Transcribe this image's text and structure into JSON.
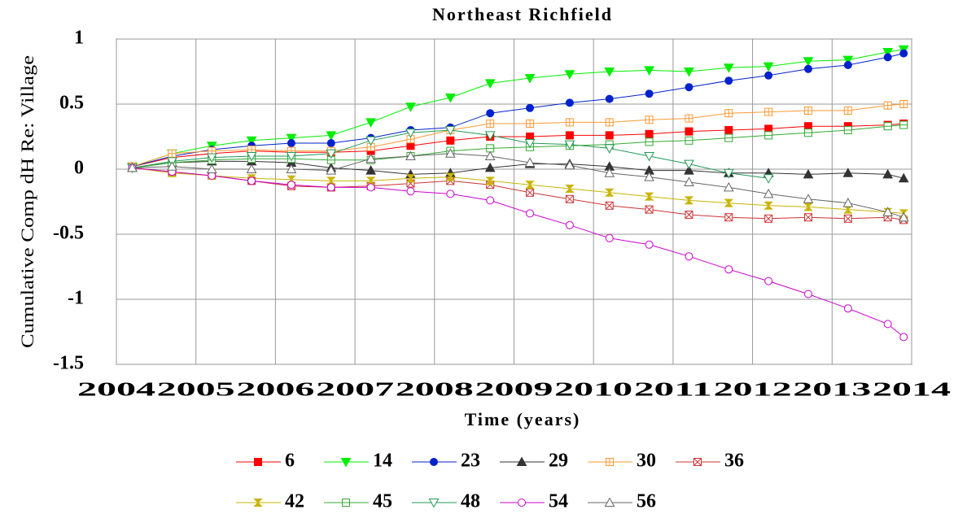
{
  "chart_data": {
    "type": "line",
    "title": "Northeast Richfield",
    "x_label": "Time (years)",
    "y_label": "Cumulative Comp dH Re: Village",
    "x": [
      2004.2,
      2004.7,
      2005.2,
      2005.7,
      2006.2,
      2006.7,
      2007.2,
      2007.7,
      2008.2,
      2008.7,
      2009.2,
      2009.7,
      2010.2,
      2010.7,
      2011.2,
      2011.7,
      2012.2,
      2012.7,
      2013.2,
      2013.7,
      2013.9
    ],
    "xlim": [
      2004,
      2014
    ],
    "xticks": [
      2004,
      2005,
      2006,
      2007,
      2008,
      2009,
      2010,
      2011,
      2012,
      2013,
      2014
    ],
    "ylim": [
      -1.5,
      1
    ],
    "yticks": [
      1,
      0.5,
      0,
      -0.5,
      -1,
      -1.5
    ],
    "grid": true,
    "legend": "bottom",
    "series": [
      {
        "name": "6",
        "color": "#ff0000",
        "marker": "square",
        "filled": true,
        "values": [
          0.02,
          0.09,
          0.12,
          0.14,
          0.13,
          0.13,
          0.14,
          0.18,
          0.22,
          0.25,
          0.25,
          0.26,
          0.26,
          0.27,
          0.29,
          0.3,
          0.31,
          0.33,
          0.33,
          0.34,
          0.35
        ]
      },
      {
        "name": "14",
        "color": "#00ee00",
        "marker": "triangle-down",
        "filled": true,
        "values": [
          0.02,
          0.12,
          0.18,
          0.22,
          0.24,
          0.26,
          0.36,
          0.48,
          0.55,
          0.66,
          0.7,
          0.73,
          0.75,
          0.76,
          0.75,
          0.78,
          0.79,
          0.83,
          0.84,
          0.9,
          0.92
        ]
      },
      {
        "name": "23",
        "color": "#0022cc",
        "marker": "circle",
        "filled": true,
        "values": [
          0.02,
          0.1,
          0.15,
          0.18,
          0.2,
          0.2,
          0.24,
          0.3,
          0.32,
          0.43,
          0.47,
          0.51,
          0.54,
          0.58,
          0.63,
          0.68,
          0.72,
          0.77,
          0.8,
          0.86,
          0.89
        ]
      },
      {
        "name": "29",
        "color": "#333333",
        "marker": "triangle-up",
        "filled": true,
        "values": [
          0.01,
          0.05,
          0.06,
          0.06,
          0.05,
          0.01,
          -0.01,
          -0.04,
          -0.03,
          0.01,
          0.04,
          0.04,
          0.02,
          -0.01,
          -0.01,
          -0.03,
          -0.03,
          -0.04,
          -0.03,
          -0.04,
          -0.07
        ]
      },
      {
        "name": "30",
        "color": "#ff9933",
        "marker": "square-plus",
        "filled": false,
        "values": [
          0.02,
          0.12,
          0.14,
          0.15,
          0.14,
          0.14,
          0.17,
          0.23,
          0.3,
          0.35,
          0.35,
          0.36,
          0.36,
          0.38,
          0.39,
          0.43,
          0.44,
          0.45,
          0.45,
          0.49,
          0.5
        ]
      },
      {
        "name": "36",
        "color": "#cc3333",
        "marker": "square-x",
        "filled": false,
        "values": [
          0.01,
          -0.02,
          -0.05,
          -0.09,
          -0.13,
          -0.14,
          -0.13,
          -0.11,
          -0.09,
          -0.12,
          -0.18,
          -0.23,
          -0.28,
          -0.31,
          -0.35,
          -0.37,
          -0.38,
          -0.37,
          -0.38,
          -0.37,
          -0.39
        ]
      },
      {
        "name": "42",
        "color": "#c8b400",
        "marker": "hourglass",
        "filled": true,
        "values": [
          0.01,
          -0.03,
          -0.05,
          -0.07,
          -0.08,
          -0.09,
          -0.09,
          -0.07,
          -0.06,
          -0.09,
          -0.12,
          -0.15,
          -0.18,
          -0.21,
          -0.24,
          -0.26,
          -0.28,
          -0.29,
          -0.31,
          -0.33,
          -0.34
        ]
      },
      {
        "name": "45",
        "color": "#33aa33",
        "marker": "square-line",
        "filled": false,
        "values": [
          0.01,
          0.05,
          0.07,
          0.08,
          0.08,
          0.07,
          0.07,
          0.1,
          0.14,
          0.16,
          0.17,
          0.18,
          0.19,
          0.21,
          0.22,
          0.24,
          0.26,
          0.28,
          0.3,
          0.33,
          0.34
        ]
      },
      {
        "name": "48",
        "color": "#229955",
        "marker": "triangle-down",
        "filled": false,
        "values": [
          0.01,
          0.06,
          0.09,
          0.1,
          0.1,
          0.12,
          0.22,
          0.28,
          0.3,
          0.26,
          0.2,
          0.19,
          0.16,
          0.1,
          0.04,
          -0.03,
          -0.07,
          null,
          null,
          null,
          null
        ]
      },
      {
        "name": "54",
        "color": "#cc00cc",
        "marker": "circle",
        "filled": false,
        "values": [
          0.01,
          -0.02,
          -0.05,
          -0.09,
          -0.12,
          -0.14,
          -0.14,
          -0.17,
          -0.19,
          -0.24,
          -0.34,
          -0.43,
          -0.53,
          -0.58,
          -0.67,
          -0.77,
          -0.86,
          -0.96,
          -1.07,
          -1.19,
          -1.29
        ]
      },
      {
        "name": "56",
        "color": "#666666",
        "marker": "triangle-up",
        "filled": false,
        "values": [
          0.01,
          0.02,
          0.0,
          0.0,
          0.0,
          -0.01,
          0.08,
          0.1,
          0.12,
          0.1,
          0.05,
          0.03,
          -0.03,
          -0.06,
          -0.1,
          -0.14,
          -0.19,
          -0.23,
          -0.26,
          -0.33,
          -0.37
        ]
      }
    ]
  }
}
